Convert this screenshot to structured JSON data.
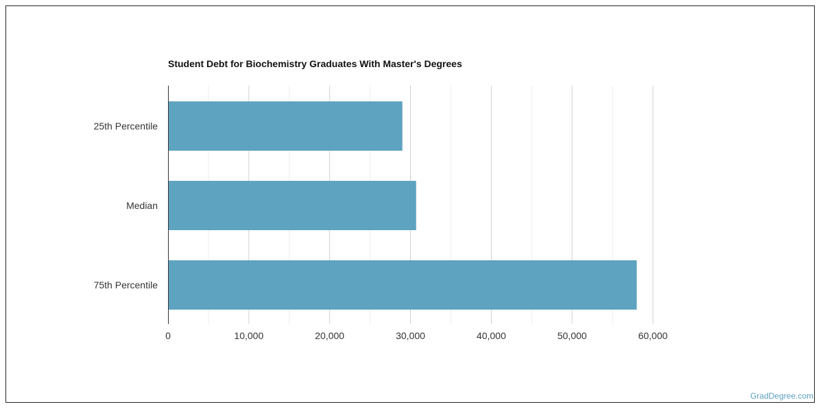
{
  "chart_data": {
    "type": "bar",
    "orientation": "horizontal",
    "title": "Student Debt for Biochemistry Graduates With Master's Degrees",
    "categories": [
      "25th Percentile",
      "Median",
      "75th Percentile"
    ],
    "values": [
      29000,
      30700,
      58000
    ],
    "xlim": [
      0,
      60000
    ],
    "xticks": [
      0,
      10000,
      20000,
      30000,
      40000,
      50000,
      60000
    ],
    "xtick_labels": [
      "0",
      "10,000",
      "20,000",
      "30,000",
      "40,000",
      "50,000",
      "60,000"
    ],
    "grid": true,
    "bar_color": "#5ea3bf"
  },
  "watermark": "GradDegree.com"
}
